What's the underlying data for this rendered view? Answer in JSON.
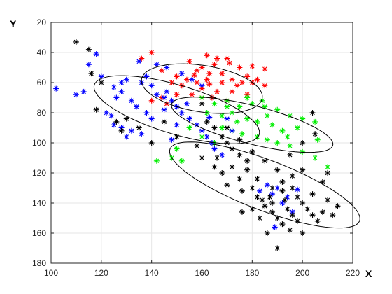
{
  "chart_data": {
    "type": "scatter",
    "title": "",
    "xlabel": "X",
    "ylabel": "Y",
    "xlim": [
      100,
      220
    ],
    "ylim": [
      20,
      180
    ],
    "y_reversed": true,
    "grid": true,
    "xticks": [
      100,
      120,
      140,
      160,
      180,
      200,
      220
    ],
    "yticks": [
      20,
      40,
      60,
      80,
      100,
      120,
      140,
      160,
      180
    ],
    "marker": "asterisk",
    "series": [
      {
        "color": "#ff0000",
        "points": [
          [
            140,
            40
          ],
          [
            136,
            44
          ],
          [
            155,
            46
          ],
          [
            162,
            42
          ],
          [
            166,
            44
          ],
          [
            170,
            44
          ],
          [
            160,
            50
          ],
          [
            175,
            50
          ],
          [
            180,
            49
          ],
          [
            185,
            51
          ],
          [
            144,
            52
          ],
          [
            150,
            56
          ],
          [
            158,
            52
          ],
          [
            163,
            54
          ],
          [
            168,
            54
          ],
          [
            172,
            58
          ],
          [
            178,
            56
          ],
          [
            165,
            48
          ],
          [
            168,
            60
          ],
          [
            174,
            62
          ],
          [
            180,
            60
          ],
          [
            185,
            62
          ],
          [
            158,
            60
          ],
          [
            152,
            62
          ],
          [
            148,
            60
          ],
          [
            160,
            64
          ],
          [
            166,
            66
          ],
          [
            172,
            66
          ],
          [
            178,
            68
          ],
          [
            164,
            70
          ],
          [
            170,
            72
          ],
          [
            156,
            68
          ],
          [
            150,
            68
          ],
          [
            144,
            70
          ],
          [
            140,
            72
          ],
          [
            146,
            74
          ],
          [
            162,
            58
          ],
          [
            176,
            60
          ],
          [
            154,
            58
          ],
          [
            160,
            70
          ],
          [
            182,
            58
          ],
          [
            171,
            47
          ],
          [
            157,
            55
          ],
          [
            163,
            61
          ]
        ]
      },
      {
        "color": "#00ee00",
        "points": [
          [
            160,
            70
          ],
          [
            165,
            74
          ],
          [
            170,
            72
          ],
          [
            175,
            76
          ],
          [
            180,
            74
          ],
          [
            185,
            76
          ],
          [
            190,
            78
          ],
          [
            195,
            82
          ],
          [
            200,
            84
          ],
          [
            205,
            86
          ],
          [
            162,
            80
          ],
          [
            168,
            82
          ],
          [
            172,
            80
          ],
          [
            178,
            84
          ],
          [
            182,
            86
          ],
          [
            188,
            88
          ],
          [
            192,
            92
          ],
          [
            198,
            90
          ],
          [
            172,
            92
          ],
          [
            176,
            94
          ],
          [
            182,
            96
          ],
          [
            186,
            98
          ],
          [
            190,
            100
          ],
          [
            195,
            102
          ],
          [
            200,
            106
          ],
          [
            205,
            110
          ],
          [
            210,
            116
          ],
          [
            155,
            90
          ],
          [
            160,
            96
          ],
          [
            165,
            100
          ],
          [
            150,
            104
          ],
          [
            148,
            110
          ],
          [
            152,
            112
          ],
          [
            142,
            112
          ],
          [
            178,
            70
          ],
          [
            184,
            72
          ],
          [
            174,
            86
          ],
          [
            168,
            90
          ],
          [
            194,
            96
          ],
          [
            206,
            98
          ],
          [
            170,
            76
          ],
          [
            186,
            82
          ]
        ]
      },
      {
        "color": "#0000ff",
        "points": [
          [
            102,
            64
          ],
          [
            110,
            68
          ],
          [
            113,
            66
          ],
          [
            115,
            48
          ],
          [
            118,
            41
          ],
          [
            120,
            56
          ],
          [
            122,
            80
          ],
          [
            124,
            82
          ],
          [
            125,
            88
          ],
          [
            128,
            90
          ],
          [
            126,
            70
          ],
          [
            128,
            66
          ],
          [
            130,
            58
          ],
          [
            132,
            72
          ],
          [
            134,
            76
          ],
          [
            135,
            46
          ],
          [
            136,
            60
          ],
          [
            138,
            56
          ],
          [
            140,
            62
          ],
          [
            142,
            68
          ],
          [
            145,
            70
          ],
          [
            146,
            66
          ],
          [
            148,
            72
          ],
          [
            150,
            76
          ],
          [
            152,
            80
          ],
          [
            155,
            84
          ],
          [
            158,
            88
          ],
          [
            160,
            92
          ],
          [
            162,
            96
          ],
          [
            164,
            100
          ],
          [
            165,
            104
          ],
          [
            168,
            108
          ],
          [
            170,
            84
          ],
          [
            172,
            92
          ],
          [
            140,
            84
          ],
          [
            136,
            94
          ],
          [
            132,
            92
          ],
          [
            130,
            96
          ],
          [
            148,
            98
          ],
          [
            150,
            88
          ],
          [
            160,
            62
          ],
          [
            156,
            58
          ],
          [
            152,
            54
          ],
          [
            146,
            50
          ],
          [
            142,
            48
          ],
          [
            128,
            60
          ],
          [
            125,
            63
          ],
          [
            183,
            132
          ],
          [
            186,
            128
          ],
          [
            188,
            134
          ],
          [
            190,
            130
          ],
          [
            192,
            140
          ],
          [
            194,
            136
          ],
          [
            196,
            146
          ],
          [
            189,
            156
          ],
          [
            198,
            131
          ],
          [
            145,
            78
          ],
          [
            138,
            80
          ],
          [
            154,
            74
          ],
          [
            163,
            83
          ]
        ]
      },
      {
        "color": "#000000",
        "points": [
          [
            110,
            33
          ],
          [
            115,
            38
          ],
          [
            116,
            54
          ],
          [
            118,
            78
          ],
          [
            120,
            60
          ],
          [
            126,
            86
          ],
          [
            128,
            92
          ],
          [
            130,
            84
          ],
          [
            160,
            74
          ],
          [
            162,
            86
          ],
          [
            165,
            90
          ],
          [
            168,
            96
          ],
          [
            170,
            100
          ],
          [
            172,
            104
          ],
          [
            175,
            108
          ],
          [
            178,
            112
          ],
          [
            160,
            110
          ],
          [
            165,
            116
          ],
          [
            168,
            120
          ],
          [
            170,
            128
          ],
          [
            175,
            124
          ],
          [
            180,
            130
          ],
          [
            182,
            136
          ],
          [
            185,
            142
          ],
          [
            188,
            146
          ],
          [
            190,
            150
          ],
          [
            192,
            154
          ],
          [
            195,
            158
          ],
          [
            186,
            160
          ],
          [
            190,
            170
          ],
          [
            176,
            146
          ],
          [
            180,
            144
          ],
          [
            184,
            138
          ],
          [
            188,
            130
          ],
          [
            192,
            126
          ],
          [
            196,
            130
          ],
          [
            198,
            136
          ],
          [
            200,
            140
          ],
          [
            202,
            144
          ],
          [
            204,
            148
          ],
          [
            206,
            152
          ],
          [
            208,
            146
          ],
          [
            210,
            138
          ],
          [
            212,
            148
          ],
          [
            200,
            160
          ],
          [
            196,
            122
          ],
          [
            200,
            118
          ],
          [
            204,
            134
          ],
          [
            194,
            144
          ],
          [
            187,
            136
          ],
          [
            178,
            118
          ],
          [
            172,
            116
          ],
          [
            166,
            110
          ],
          [
            175,
            98
          ],
          [
            180,
            106
          ],
          [
            185,
            112
          ],
          [
            190,
            118
          ],
          [
            195,
            108
          ],
          [
            200,
            100
          ],
          [
            204,
            80
          ],
          [
            205,
            94
          ],
          [
            198,
            152
          ],
          [
            193,
            138
          ],
          [
            183,
            150
          ],
          [
            170,
            90
          ],
          [
            158,
            102
          ],
          [
            150,
            96
          ],
          [
            140,
            100
          ],
          [
            135,
            90
          ],
          [
            145,
            86
          ],
          [
            188,
            140
          ],
          [
            176,
            132
          ],
          [
            182,
            124
          ],
          [
            208,
            126
          ],
          [
            210,
            120
          ],
          [
            214,
            142
          ],
          [
            196,
            148
          ],
          [
            192,
            132
          ]
        ]
      }
    ],
    "ellipses": [
      {
        "color": "#000000",
        "center": [
          150,
          78
        ],
        "semi_axes": [
          37,
          15
        ],
        "angle_deg": 30
      },
      {
        "color": "#000000",
        "center": [
          160,
          64
        ],
        "semi_axes": [
          25,
          15
        ],
        "angle_deg": 20
      },
      {
        "color": "#000000",
        "center": [
          180,
          88
        ],
        "semi_axes": [
          35,
          12
        ],
        "angle_deg": 25
      },
      {
        "color": "#000000",
        "center": [
          185,
          128
        ],
        "semi_axes": [
          45,
          15
        ],
        "angle_deg": 35
      }
    ]
  }
}
